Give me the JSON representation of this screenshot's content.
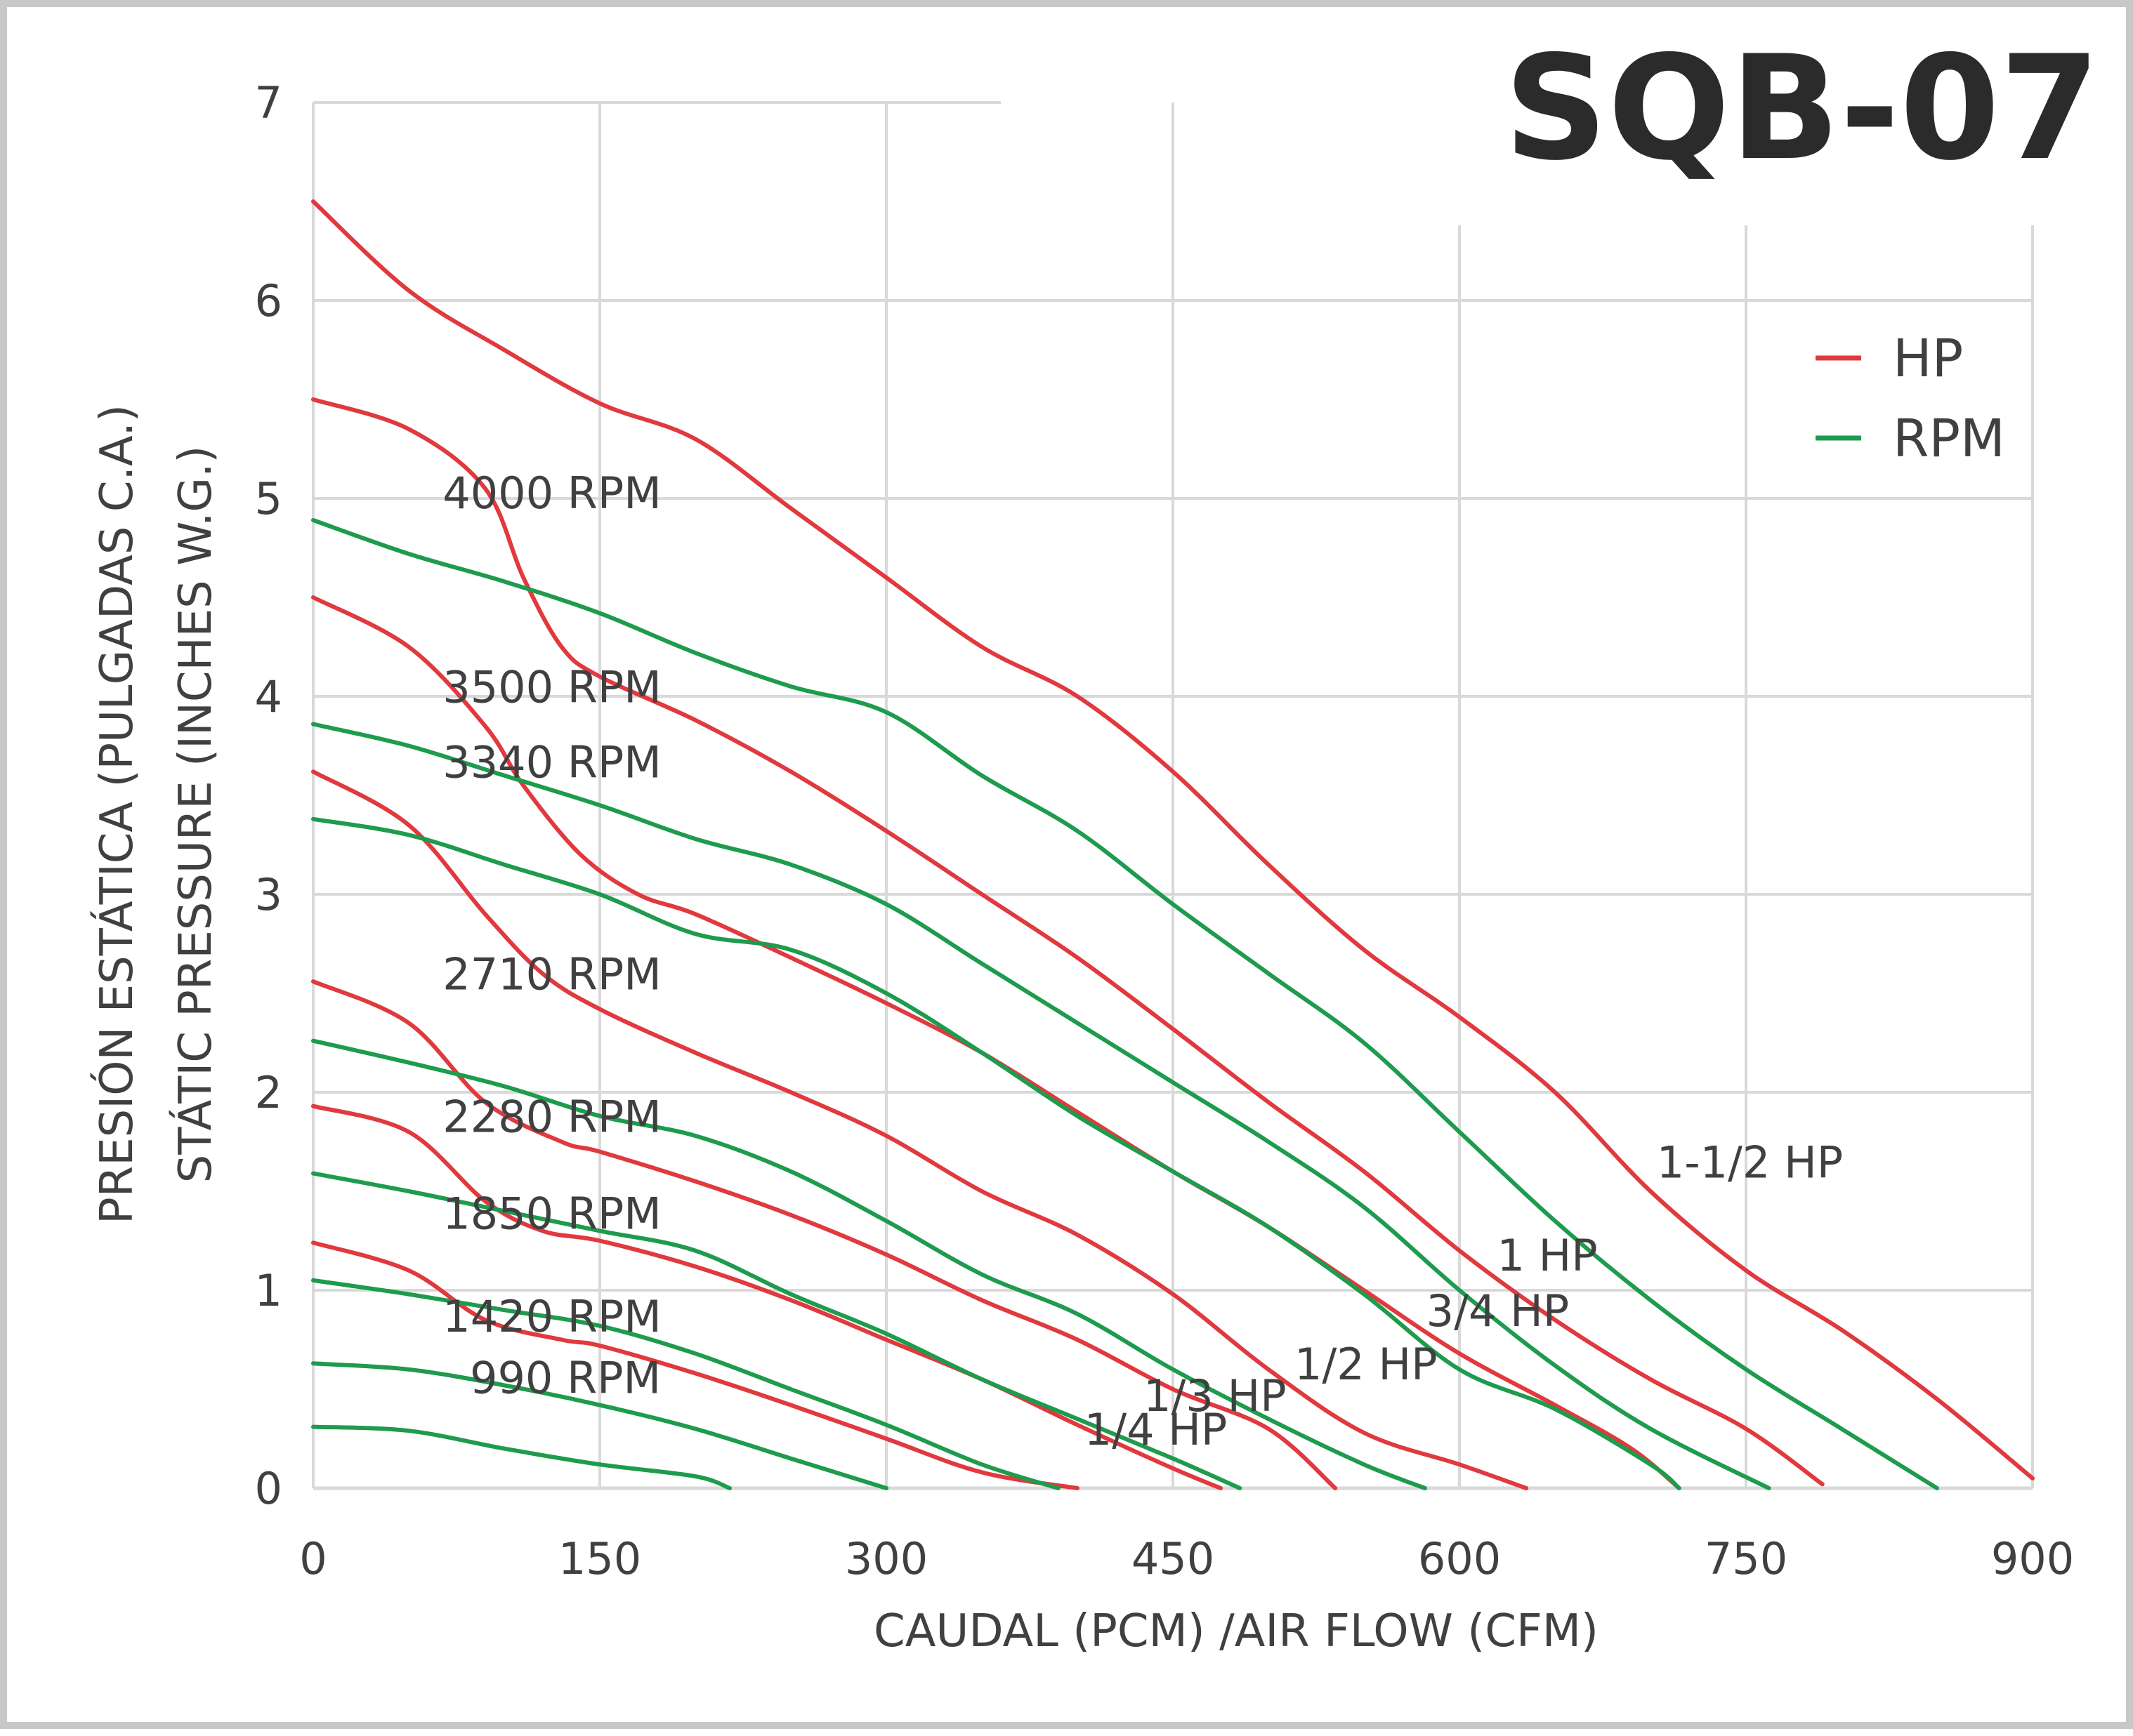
{
  "chart_data": {
    "type": "line",
    "title": "SQB-07",
    "xlabel": "CAUDAL (PCM) /AIR FLOW (CFM)",
    "ylabel": [
      "PRESIÓN ESTÁTICA (PULGADAS C.A.)",
      "STÁTIC PRESSURE (INCHES W.G.)"
    ],
    "xlim": [
      0,
      900
    ],
    "ylim": [
      0,
      7
    ],
    "x_ticks": [
      "0",
      "150",
      "300",
      "450",
      "600",
      "750",
      "900"
    ],
    "y_ticks": [
      "0",
      "1",
      "2",
      "3",
      "4",
      "5",
      "6",
      "7"
    ],
    "grid": true,
    "legend": {
      "position": "top-right",
      "entries": [
        {
          "name": "HP",
          "color": "#e0393e"
        },
        {
          "name": "RPM",
          "color": "#1e9b4d"
        }
      ]
    },
    "series": [
      {
        "name": "1-1/2 HP",
        "group": "HP",
        "color": "#e0393e",
        "points": [
          [
            0,
            6.5
          ],
          [
            50,
            6.05
          ],
          [
            100,
            5.75
          ],
          [
            150,
            5.48
          ],
          [
            200,
            5.3
          ],
          [
            250,
            4.95
          ],
          [
            300,
            4.6
          ],
          [
            350,
            4.25
          ],
          [
            400,
            4.0
          ],
          [
            450,
            3.62
          ],
          [
            500,
            3.15
          ],
          [
            550,
            2.72
          ],
          [
            600,
            2.38
          ],
          [
            650,
            2.0
          ],
          [
            700,
            1.5
          ],
          [
            750,
            1.1
          ],
          [
            800,
            0.8
          ],
          [
            850,
            0.45
          ],
          [
            900,
            0.05
          ]
        ]
      },
      {
        "name": "1 HP",
        "group": "HP",
        "color": "#e0393e",
        "points": [
          [
            0,
            5.5
          ],
          [
            50,
            5.35
          ],
          [
            90,
            5.05
          ],
          [
            110,
            4.6
          ],
          [
            130,
            4.25
          ],
          [
            150,
            4.1
          ],
          [
            200,
            3.88
          ],
          [
            250,
            3.62
          ],
          [
            300,
            3.32
          ],
          [
            350,
            3.0
          ],
          [
            400,
            2.68
          ],
          [
            450,
            2.32
          ],
          [
            500,
            1.95
          ],
          [
            550,
            1.6
          ],
          [
            600,
            1.2
          ],
          [
            650,
            0.85
          ],
          [
            700,
            0.55
          ],
          [
            750,
            0.3
          ],
          [
            790,
            0.02
          ]
        ]
      },
      {
        "name": "3/4 HP",
        "group": "HP",
        "color": "#e0393e",
        "points": [
          [
            0,
            4.5
          ],
          [
            50,
            4.25
          ],
          [
            90,
            3.85
          ],
          [
            110,
            3.55
          ],
          [
            140,
            3.2
          ],
          [
            170,
            3.0
          ],
          [
            200,
            2.9
          ],
          [
            250,
            2.68
          ],
          [
            300,
            2.45
          ],
          [
            350,
            2.2
          ],
          [
            400,
            1.9
          ],
          [
            450,
            1.6
          ],
          [
            500,
            1.32
          ],
          [
            550,
            1.0
          ],
          [
            600,
            0.68
          ],
          [
            650,
            0.42
          ],
          [
            690,
            0.2
          ],
          [
            715,
            0.0
          ]
        ]
      },
      {
        "name": "1/2 HP",
        "group": "HP",
        "color": "#e0393e",
        "points": [
          [
            0,
            3.62
          ],
          [
            50,
            3.35
          ],
          [
            90,
            2.9
          ],
          [
            120,
            2.6
          ],
          [
            150,
            2.42
          ],
          [
            200,
            2.2
          ],
          [
            250,
            2.0
          ],
          [
            300,
            1.78
          ],
          [
            350,
            1.5
          ],
          [
            400,
            1.28
          ],
          [
            450,
            0.98
          ],
          [
            500,
            0.6
          ],
          [
            550,
            0.28
          ],
          [
            600,
            0.12
          ],
          [
            635,
            0.0
          ]
        ]
      },
      {
        "name": "1/3 HP",
        "group": "HP",
        "color": "#e0393e",
        "points": [
          [
            0,
            2.56
          ],
          [
            50,
            2.35
          ],
          [
            90,
            1.95
          ],
          [
            130,
            1.75
          ],
          [
            150,
            1.7
          ],
          [
            200,
            1.55
          ],
          [
            250,
            1.38
          ],
          [
            300,
            1.18
          ],
          [
            350,
            0.95
          ],
          [
            400,
            0.75
          ],
          [
            450,
            0.5
          ],
          [
            500,
            0.3
          ],
          [
            535,
            0.0
          ]
        ]
      },
      {
        "name": "1/4 HP",
        "group": "HP",
        "color": "#e0393e",
        "points": [
          [
            0,
            1.93
          ],
          [
            50,
            1.8
          ],
          [
            90,
            1.45
          ],
          [
            120,
            1.3
          ],
          [
            150,
            1.25
          ],
          [
            200,
            1.12
          ],
          [
            250,
            0.95
          ],
          [
            300,
            0.75
          ],
          [
            350,
            0.55
          ],
          [
            400,
            0.32
          ],
          [
            450,
            0.1
          ],
          [
            475,
            0.0
          ]
        ]
      },
      {
        "name": "",
        "group": "HP",
        "color": "#e0393e",
        "points": [
          [
            0,
            1.24
          ],
          [
            50,
            1.1
          ],
          [
            90,
            0.85
          ],
          [
            130,
            0.75
          ],
          [
            150,
            0.72
          ],
          [
            200,
            0.58
          ],
          [
            250,
            0.42
          ],
          [
            300,
            0.25
          ],
          [
            350,
            0.08
          ],
          [
            400,
            0.0
          ]
        ]
      },
      {
        "name": "4000 RPM",
        "group": "RPM",
        "color": "#1e9b4d",
        "points": [
          [
            0,
            4.89
          ],
          [
            50,
            4.72
          ],
          [
            100,
            4.58
          ],
          [
            150,
            4.42
          ],
          [
            200,
            4.22
          ],
          [
            250,
            4.05
          ],
          [
            300,
            3.92
          ],
          [
            350,
            3.6
          ],
          [
            400,
            3.32
          ],
          [
            450,
            2.95
          ],
          [
            500,
            2.6
          ],
          [
            550,
            2.25
          ],
          [
            600,
            1.8
          ],
          [
            650,
            1.35
          ],
          [
            700,
            0.95
          ],
          [
            750,
            0.6
          ],
          [
            800,
            0.3
          ],
          [
            850,
            0.0
          ]
        ]
      },
      {
        "name": "3500 RPM",
        "group": "RPM",
        "color": "#1e9b4d",
        "points": [
          [
            0,
            3.86
          ],
          [
            50,
            3.75
          ],
          [
            100,
            3.6
          ],
          [
            150,
            3.45
          ],
          [
            200,
            3.28
          ],
          [
            250,
            3.15
          ],
          [
            300,
            2.95
          ],
          [
            350,
            2.65
          ],
          [
            400,
            2.35
          ],
          [
            450,
            2.05
          ],
          [
            500,
            1.75
          ],
          [
            550,
            1.42
          ],
          [
            600,
            1.0
          ],
          [
            650,
            0.62
          ],
          [
            700,
            0.3
          ],
          [
            762,
            0.0
          ]
        ]
      },
      {
        "name": "3340 RPM",
        "group": "RPM",
        "color": "#1e9b4d",
        "points": [
          [
            0,
            3.38
          ],
          [
            50,
            3.3
          ],
          [
            100,
            3.15
          ],
          [
            150,
            3.0
          ],
          [
            200,
            2.8
          ],
          [
            250,
            2.72
          ],
          [
            300,
            2.5
          ],
          [
            350,
            2.2
          ],
          [
            400,
            1.88
          ],
          [
            450,
            1.6
          ],
          [
            500,
            1.32
          ],
          [
            550,
            0.98
          ],
          [
            600,
            0.6
          ],
          [
            650,
            0.4
          ],
          [
            700,
            0.12
          ],
          [
            715,
            0.0
          ]
        ]
      },
      {
        "name": "2710 RPM",
        "group": "RPM",
        "color": "#1e9b4d",
        "points": [
          [
            0,
            2.26
          ],
          [
            50,
            2.15
          ],
          [
            100,
            2.03
          ],
          [
            150,
            1.88
          ],
          [
            200,
            1.78
          ],
          [
            250,
            1.6
          ],
          [
            300,
            1.35
          ],
          [
            350,
            1.08
          ],
          [
            400,
            0.88
          ],
          [
            450,
            0.6
          ],
          [
            500,
            0.35
          ],
          [
            550,
            0.12
          ],
          [
            582,
            0.0
          ]
        ]
      },
      {
        "name": "2280 RPM",
        "group": "RPM",
        "color": "#1e9b4d",
        "points": [
          [
            0,
            1.59
          ],
          [
            50,
            1.5
          ],
          [
            100,
            1.4
          ],
          [
            150,
            1.3
          ],
          [
            200,
            1.2
          ],
          [
            250,
            0.98
          ],
          [
            300,
            0.78
          ],
          [
            350,
            0.55
          ],
          [
            400,
            0.35
          ],
          [
            450,
            0.15
          ],
          [
            485,
            0.0
          ]
        ]
      },
      {
        "name": "1850 RPM",
        "group": "RPM",
        "color": "#1e9b4d",
        "points": [
          [
            0,
            1.05
          ],
          [
            50,
            0.98
          ],
          [
            100,
            0.9
          ],
          [
            150,
            0.82
          ],
          [
            200,
            0.68
          ],
          [
            250,
            0.5
          ],
          [
            300,
            0.32
          ],
          [
            350,
            0.12
          ],
          [
            390,
            0.0
          ]
        ]
      },
      {
        "name": "1420 RPM",
        "group": "RPM",
        "color": "#1e9b4d",
        "points": [
          [
            0,
            0.63
          ],
          [
            50,
            0.6
          ],
          [
            100,
            0.52
          ],
          [
            150,
            0.42
          ],
          [
            200,
            0.3
          ],
          [
            250,
            0.15
          ],
          [
            300,
            0.0
          ]
        ]
      },
      {
        "name": "990 RPM",
        "group": "RPM",
        "color": "#1e9b4d",
        "points": [
          [
            0,
            0.31
          ],
          [
            50,
            0.29
          ],
          [
            100,
            0.2
          ],
          [
            150,
            0.12
          ],
          [
            200,
            0.06
          ],
          [
            218,
            0.0
          ]
        ]
      }
    ],
    "annotations": [
      {
        "text": "4000 RPM",
        "x": 125,
        "y": 4.95
      },
      {
        "text": "3500 RPM",
        "x": 125,
        "y": 3.97
      },
      {
        "text": "3340 RPM",
        "x": 125,
        "y": 3.59
      },
      {
        "text": "2710 RPM",
        "x": 125,
        "y": 2.52
      },
      {
        "text": "2280 RPM",
        "x": 125,
        "y": 1.8
      },
      {
        "text": "1850 RPM",
        "x": 125,
        "y": 1.31
      },
      {
        "text": "1420 RPM",
        "x": 125,
        "y": 0.79
      },
      {
        "text": "990 RPM",
        "x": 132,
        "y": 0.48
      },
      {
        "text": "1-1/2 HP",
        "x": 752,
        "y": 1.57
      },
      {
        "text": "1 HP",
        "x": 646,
        "y": 1.1
      },
      {
        "text": "3/4 HP",
        "x": 620,
        "y": 0.82
      },
      {
        "text": "1/2 HP",
        "x": 551,
        "y": 0.55
      },
      {
        "text": "1/3 HP",
        "x": 472,
        "y": 0.39
      },
      {
        "text": "1/4 HP",
        "x": 441,
        "y": 0.22
      }
    ]
  }
}
